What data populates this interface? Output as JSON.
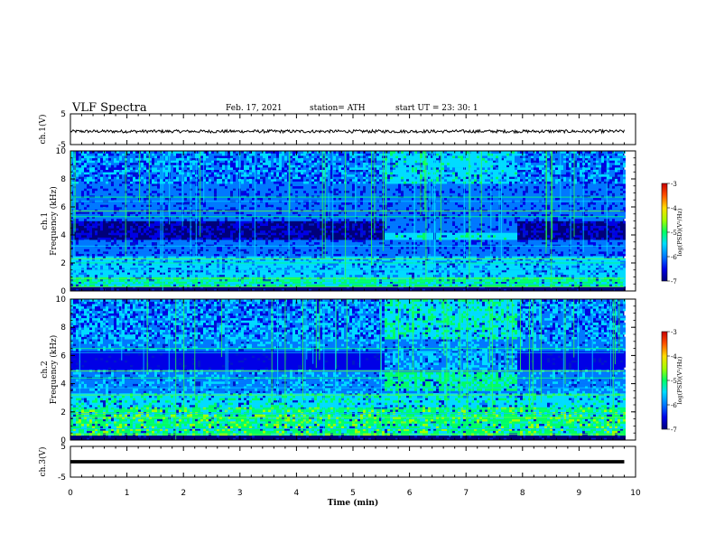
{
  "header": {
    "title": "VLF Spectra",
    "date": "Feb. 17, 2021",
    "station": "station= ATH",
    "start": "start  UT  =   23: 30: 1"
  },
  "chart_data": {
    "type": "heatmap",
    "x_axis": {
      "label": "Time (min)",
      "range": [
        0,
        10
      ],
      "ticks": [
        0,
        1,
        2,
        3,
        4,
        5,
        6,
        7,
        8,
        9,
        10
      ],
      "tick_labels": [
        "0",
        "1",
        "2",
        "3",
        "4",
        "5",
        "6",
        "7",
        "8",
        "9",
        "10"
      ],
      "data_end": 9.8
    },
    "panels": [
      {
        "id": "ch1-voltage",
        "type": "line",
        "ylabel": "ch.1(V)",
        "ylim": [
          -5,
          5
        ],
        "tick_labels": [
          "5",
          "-5"
        ],
        "signal": {
          "mean": -0.7,
          "amplitude": 0.5
        }
      },
      {
        "id": "ch1-spectrogram",
        "type": "heatmap",
        "ylabel": "ch.1\nFrequency (kHz)",
        "ylim": [
          0,
          10
        ],
        "ticks": [
          0,
          2,
          4,
          6,
          8,
          10
        ],
        "tick_labels": [
          "0",
          "2",
          "4",
          "6",
          "8",
          "10"
        ],
        "colorbar": {
          "label": "log(PSD)(V²/Hz)",
          "range": [
            -7,
            -3
          ],
          "tick_labels": [
            "-3",
            "-4",
            "-5",
            "-6",
            "-7"
          ]
        },
        "features": {
          "quiet_band_kHz": [
            3.6,
            4.9
          ],
          "quiet_band_minutes": [
            [
              0,
              5.55
            ],
            [
              7.9,
              9.8
            ]
          ],
          "active_window_minutes": [
            5.55,
            7.9
          ],
          "tone_lines_kHz": [
            6.7,
            6.4,
            5.7,
            5.3,
            3.2,
            2.3,
            2.0,
            1.5,
            0.9,
            0.7,
            0.5,
            0.3
          ]
        }
      },
      {
        "id": "ch2-spectrogram",
        "type": "heatmap",
        "ylabel": "ch.2\nFrequency (kHz)",
        "ylim": [
          0,
          10
        ],
        "ticks": [
          0,
          2,
          4,
          6,
          8,
          10
        ],
        "tick_labels": [
          "0",
          "2",
          "4",
          "6",
          "8",
          "10"
        ],
        "colorbar": {
          "label": "log(PSD)(V²/Hz)",
          "range": [
            -7,
            -3
          ],
          "tick_labels": [
            "-3",
            "-4",
            "-5",
            "-6",
            "-7"
          ]
        },
        "features": {
          "quiet_band_kHz": [
            5.0,
            6.2
          ],
          "active_window_minutes": [
            5.55,
            7.9
          ],
          "tone_lines_kHz": [
            6.5,
            6.2,
            4.9,
            4.4,
            3.7,
            3.2,
            2.2,
            1.9,
            1.6,
            1.2,
            0.8,
            0.4
          ]
        }
      },
      {
        "id": "ch3-voltage",
        "type": "line",
        "ylabel": "ch.3(V)",
        "ylim": [
          -5,
          5
        ],
        "tick_labels": [
          "5",
          "-5"
        ],
        "signal": {
          "mean": 0.0,
          "amplitude": 0.6
        }
      }
    ]
  },
  "colors": {
    "line": "#000000",
    "colormap": [
      "#00007a",
      "#0000e6",
      "#0078ff",
      "#00dcff",
      "#00ff64",
      "#a0ff00",
      "#ffdc00",
      "#ff5000",
      "#c80000"
    ]
  }
}
